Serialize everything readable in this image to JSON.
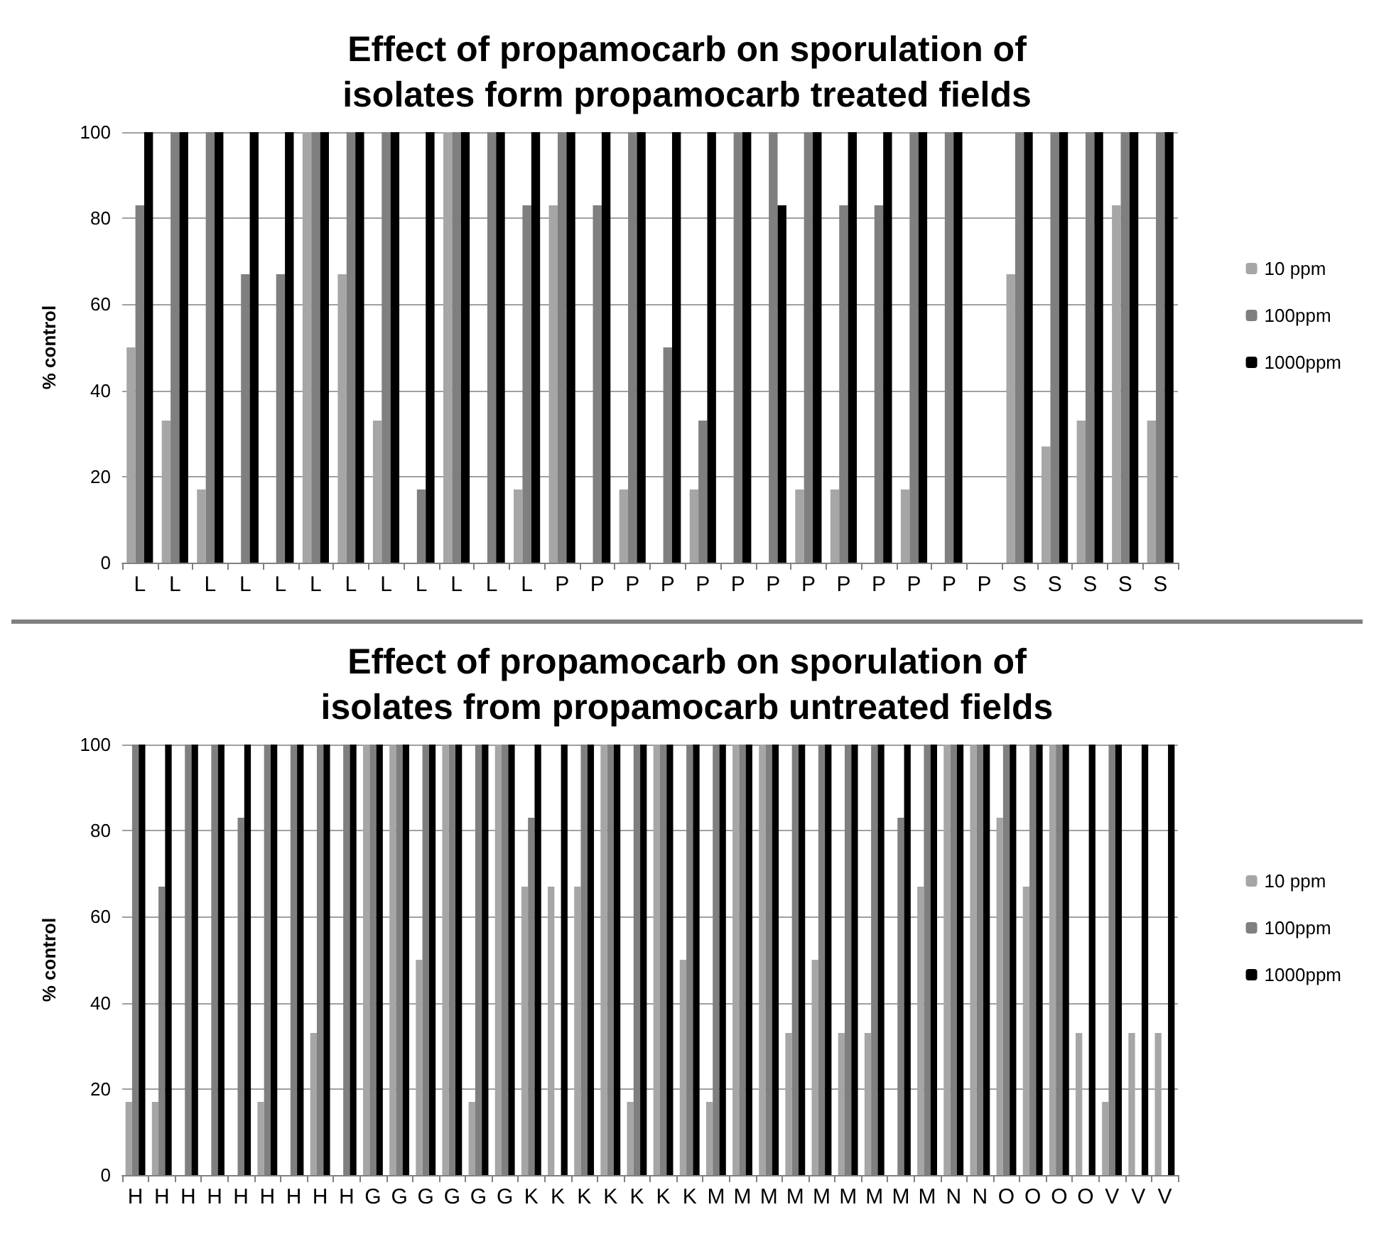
{
  "chart_data": [
    {
      "type": "bar",
      "title": "Effect of propamocarb on sporulation of\nisolates form propamocarb treated fields",
      "ylabel": "% control",
      "categories": [
        "L",
        "L",
        "L",
        "L",
        "L",
        "L",
        "L",
        "L",
        "L",
        "L",
        "L",
        "L",
        "P",
        "P",
        "P",
        "P",
        "P",
        "P",
        "P",
        "P",
        "P",
        "P",
        "P",
        "P",
        "P",
        "S",
        "S",
        "S",
        "S",
        "S"
      ],
      "series": [
        {
          "name": "10 ppm",
          "color": "#a6a6a6",
          "values": [
            50,
            33,
            17,
            0,
            0,
            100,
            67,
            33,
            0,
            100,
            0,
            17,
            83,
            0,
            17,
            0,
            17,
            0,
            0,
            17,
            17,
            0,
            17,
            0,
            0,
            67,
            27,
            33,
            83,
            33
          ]
        },
        {
          "name": "100ppm",
          "color": "#7f7f7f",
          "values": [
            83,
            100,
            100,
            67,
            67,
            100,
            100,
            100,
            17,
            100,
            100,
            83,
            100,
            83,
            100,
            50,
            33,
            100,
            100,
            100,
            83,
            83,
            100,
            100,
            0,
            100,
            100,
            100,
            100,
            100
          ]
        },
        {
          "name": "1000ppm",
          "color": "#000000",
          "values": [
            100,
            100,
            100,
            100,
            100,
            100,
            100,
            100,
            100,
            100,
            100,
            100,
            100,
            100,
            100,
            100,
            100,
            100,
            83,
            100,
            100,
            100,
            100,
            100,
            0,
            100,
            100,
            100,
            100,
            100
          ]
        }
      ],
      "ylim": [
        0,
        100
      ],
      "yticks": [
        0,
        20,
        40,
        60,
        80,
        100
      ],
      "grid": "y",
      "legend": "right"
    },
    {
      "type": "bar",
      "title": "Effect of propamocarb on sporulation of\nisolates from propamocarb untreated fields",
      "ylabel": "% control",
      "categories": [
        "H",
        "H",
        "H",
        "H",
        "H",
        "H",
        "H",
        "H",
        "H",
        "G",
        "G",
        "G",
        "G",
        "G",
        "G",
        "K",
        "K",
        "K",
        "K",
        "K",
        "K",
        "K",
        "M",
        "M",
        "M",
        "M",
        "M",
        "M",
        "M",
        "M",
        "M",
        "N",
        "N",
        "O",
        "O",
        "O",
        "O",
        "V",
        "V",
        "V"
      ],
      "series": [
        {
          "name": "10 ppm",
          "color": "#a6a6a6",
          "values": [
            17,
            17,
            0,
            0,
            0,
            17,
            0,
            33,
            0,
            100,
            100,
            50,
            100,
            17,
            100,
            67,
            67,
            67,
            100,
            17,
            100,
            50,
            17,
            100,
            100,
            33,
            50,
            33,
            33,
            0,
            67,
            100,
            100,
            83,
            67,
            100,
            33,
            17,
            33,
            33
          ]
        },
        {
          "name": "100ppm",
          "color": "#7f7f7f",
          "values": [
            100,
            67,
            100,
            100,
            83,
            100,
            100,
            100,
            100,
            100,
            100,
            100,
            100,
            100,
            100,
            83,
            0,
            100,
            100,
            100,
            100,
            100,
            100,
            100,
            100,
            100,
            100,
            100,
            100,
            83,
            100,
            100,
            100,
            100,
            100,
            100,
            0,
            100,
            0,
            0
          ]
        },
        {
          "name": "1000ppm",
          "color": "#000000",
          "values": [
            100,
            100,
            100,
            100,
            100,
            100,
            100,
            100,
            100,
            100,
            100,
            100,
            100,
            100,
            100,
            100,
            100,
            100,
            100,
            100,
            100,
            100,
            100,
            100,
            100,
            100,
            100,
            100,
            100,
            100,
            100,
            100,
            100,
            100,
            100,
            100,
            100,
            100,
            100,
            100
          ]
        }
      ],
      "ylim": [
        0,
        100
      ],
      "yticks": [
        0,
        20,
        40,
        60,
        80,
        100
      ],
      "grid": "y",
      "legend": "right"
    }
  ]
}
